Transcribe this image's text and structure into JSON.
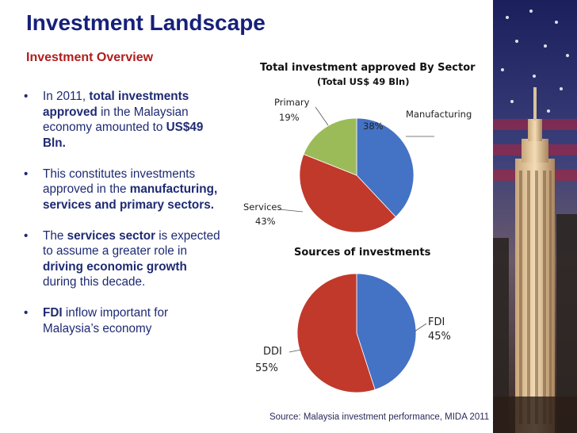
{
  "slide": {
    "title": "Investment Landscape",
    "subtitle": "Investment Overview",
    "bullet_symbol": "•",
    "bullets": [
      {
        "parts": [
          {
            "text": "In 2011, ",
            "bold": false
          },
          {
            "text": "total investments approved",
            "bold": true
          },
          {
            "text": " in the Malaysian economy amounted to ",
            "bold": false
          },
          {
            "text": "US$49 Bln.",
            "bold": true
          }
        ]
      },
      {
        "parts": [
          {
            "text": "This constitutes investments approved in the ",
            "bold": false
          },
          {
            "text": "manufacturing, services and primary sectors.",
            "bold": true
          }
        ]
      },
      {
        "parts": [
          {
            "text": "The ",
            "bold": false
          },
          {
            "text": "services sector",
            "bold": true
          },
          {
            "text": " is expected to assume a greater role in ",
            "bold": false
          },
          {
            "text": "driving economic growth",
            "bold": true
          },
          {
            "text": " during this decade.",
            "bold": false
          }
        ]
      },
      {
        "parts": [
          {
            "text": "FDI",
            "bold": true
          },
          {
            "text": " inflow important for Malaysia’s economy",
            "bold": false
          }
        ]
      }
    ],
    "source": "Source: Malaysia investment performance, MIDA 2011",
    "colors": {
      "title": "#16207a",
      "subtitle": "#b01d1d",
      "body": "#1e2a73"
    }
  },
  "chart_data": [
    {
      "type": "pie",
      "title": "Total investment approved By Sector",
      "subtitle": "(Total US$ 49 Bln)",
      "categories": [
        "Manufacturing",
        "Services",
        "Primary"
      ],
      "values": [
        38,
        43,
        19
      ],
      "value_labels": [
        "38%",
        "43%",
        "19%"
      ],
      "colors": [
        "#4472c4",
        "#c0392b",
        "#9bbb59"
      ]
    },
    {
      "type": "pie",
      "title": "Sources of investments",
      "categories": [
        "FDI",
        "DDI"
      ],
      "values": [
        45,
        55
      ],
      "value_labels": [
        "45%",
        "55%"
      ],
      "colors": [
        "#4472c4",
        "#c0392b"
      ]
    }
  ]
}
